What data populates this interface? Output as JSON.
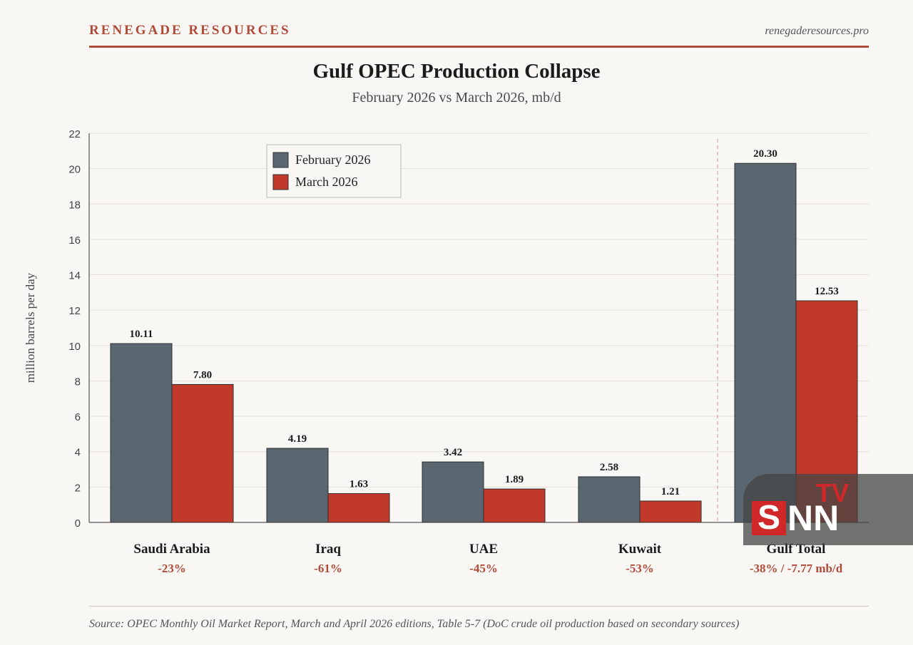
{
  "header": {
    "brand": "RENEGADE RESOURCES",
    "site": "renegaderesources.pro"
  },
  "title": "Gulf OPEC Production Collapse",
  "subtitle": "February 2026 vs March 2026, mb/d",
  "footer": {
    "source": "Source: OPEC Monthly Oil Market Report, March and April 2026 editions, Table 5-7 (DoC crude oil production based on secondary sources)"
  },
  "watermark": {
    "tv": "TV",
    "s": "S",
    "nn": "NN"
  },
  "colors": {
    "feb": "#5a6670",
    "mar": "#c0392b",
    "accent": "#b24a38",
    "change": "#b24a38"
  },
  "chart_data": {
    "type": "bar",
    "title": "Gulf OPEC Production Collapse",
    "subtitle": "February 2026 vs March 2026, mb/d",
    "ylabel": "million barrels per day",
    "xlabel": "",
    "ylim": [
      0,
      22
    ],
    "yticks": [
      0,
      2,
      4,
      6,
      8,
      10,
      12,
      14,
      16,
      18,
      20,
      22
    ],
    "grid": true,
    "legend_position": "top-left",
    "categories": [
      "Saudi Arabia",
      "Iraq",
      "UAE",
      "Kuwait",
      "Gulf Total"
    ],
    "change_labels": [
      "-23%",
      "-61%",
      "-45%",
      "-53%",
      "-38% / -7.77 mb/d"
    ],
    "series": [
      {
        "name": "February 2026",
        "values": [
          10.11,
          4.19,
          3.42,
          2.58,
          20.3
        ],
        "labels": [
          "10.11",
          "4.19",
          "3.42",
          "2.58",
          "20.30"
        ]
      },
      {
        "name": "March 2026",
        "values": [
          7.8,
          1.63,
          1.89,
          1.21,
          12.53
        ],
        "labels": [
          "7.80",
          "1.63",
          "1.89",
          "1.21",
          "12.53"
        ]
      }
    ]
  }
}
